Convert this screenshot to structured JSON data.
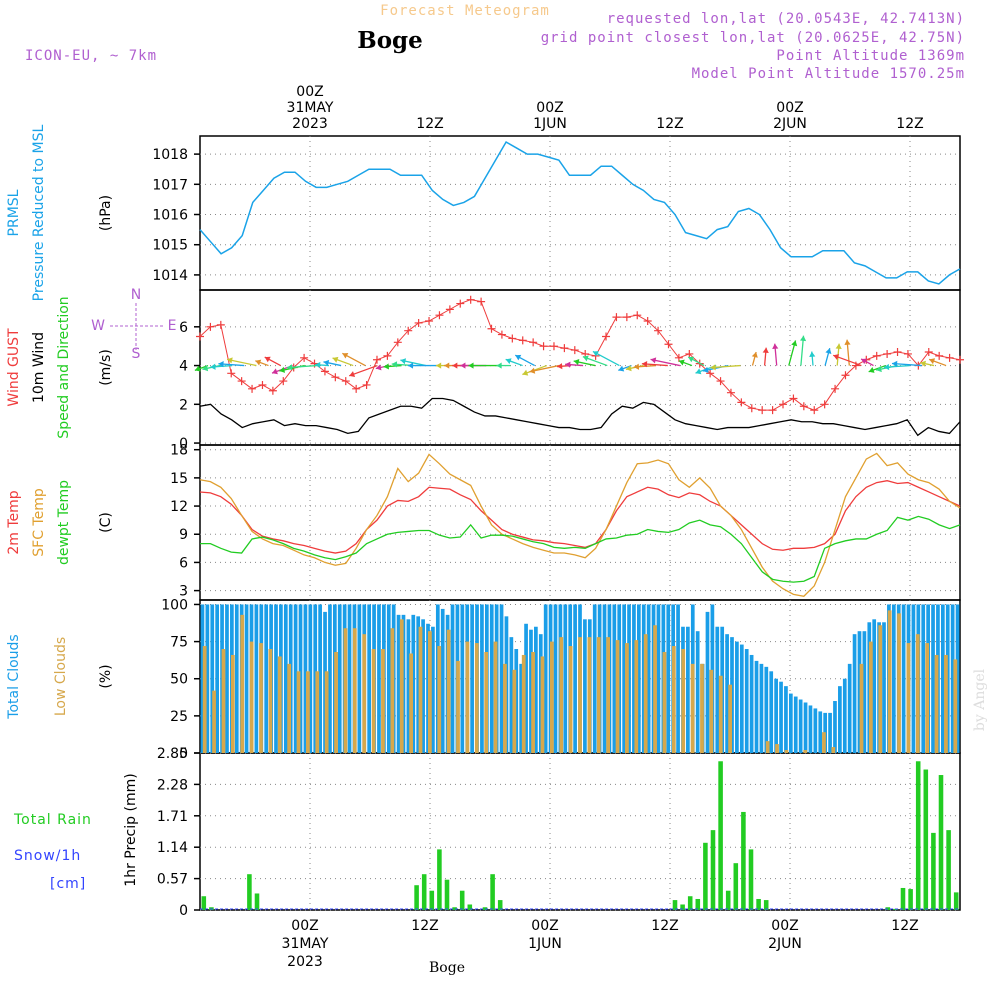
{
  "header": {
    "title": "Forecast Meteogram",
    "place": "Boge",
    "model": "ICON-EU, ~ 7km",
    "requested": "requested lon,lat (20.0543E, 42.7413N)",
    "grid_point": "grid point closest lon,lat (20.0625E, 42.75N)",
    "point_alt": "Point Altitude 1369m",
    "model_alt": "Model Point Altitude 1570.25m",
    "footer": "Boge",
    "credit": "by Angel"
  },
  "time_axis": {
    "labels": [
      {
        "x": 12,
        "lines": [
          "00Z",
          "31MAY",
          "2023"
        ]
      },
      {
        "x": 24,
        "lines": [
          "12Z"
        ]
      },
      {
        "x": 36,
        "lines": [
          "00Z",
          "1JUN"
        ]
      },
      {
        "x": 48,
        "lines": [
          "12Z"
        ]
      },
      {
        "x": 60,
        "lines": [
          "00Z",
          "2JUN"
        ]
      },
      {
        "x": 72,
        "lines": [
          "12Z"
        ]
      }
    ],
    "start_hour": 1,
    "end_hour": 77
  },
  "colors": {
    "pressure": "#1aa3e8",
    "gust": "#ef3c3c",
    "wind": "#000000",
    "temp2m": "#ef3c3c",
    "sfc": "#e0a030",
    "dew": "#22cc22",
    "total_clouds": "#1a9ee8",
    "low_clouds": "#d6a84c",
    "rain": "#22cc22",
    "snow": "#3344ff",
    "label_purple": "#b060d0",
    "title_orange": "#f6c98c"
  },
  "chart_data": [
    {
      "type": "line",
      "ylabels": [
        "PRMSL",
        "Pressure Reduced to MSL",
        "(hPa)"
      ],
      "ylim": [
        1013.5,
        1018.6
      ],
      "yticks": [
        1014,
        1015,
        1016,
        1017,
        1018
      ],
      "series": [
        {
          "values": [
            1015.5,
            1015.1,
            1014.7,
            1014.9,
            1015.3,
            1016.4,
            1016.8,
            1017.2,
            1017.4,
            1017.4,
            1017.1,
            1016.9,
            1016.9,
            1017.0,
            1017.1,
            1017.3,
            1017.5,
            1017.5,
            1017.5,
            1017.3,
            1017.3,
            1017.3,
            1016.8,
            1016.5,
            1016.3,
            1016.4,
            1016.6,
            1017.2,
            1017.8,
            1018.4,
            1018.2,
            1018.0,
            1018.0,
            1017.9,
            1017.8,
            1017.3,
            1017.3,
            1017.3,
            1017.6,
            1017.6,
            1017.3,
            1017.0,
            1016.8,
            1016.5,
            1016.4,
            1016.0,
            1015.4,
            1015.3,
            1015.2,
            1015.5,
            1015.6,
            1016.1,
            1016.2,
            1016.0,
            1015.5,
            1014.9,
            1014.6,
            1014.6,
            1014.6,
            1014.8,
            1014.8,
            1014.8,
            1014.4,
            1014.3,
            1014.1,
            1013.9,
            1013.9,
            1014.1,
            1014.1,
            1013.8,
            1013.7,
            1014.0,
            1014.2
          ]
        }
      ]
    },
    {
      "type": "line",
      "ylabels": [
        "Wind GUST",
        "10m Wind",
        "Speed and Direction",
        "(m/s)"
      ],
      "ylim": [
        -0.1,
        7.9
      ],
      "yticks": [
        0,
        2,
        4,
        6
      ],
      "compass": [
        "N",
        "W",
        "E",
        "S"
      ],
      "series": [
        {
          "name": "Wind GUST",
          "values": [
            5.5,
            6.0,
            6.1,
            3.6,
            3.2,
            2.8,
            3.0,
            2.7,
            3.2,
            3.9,
            4.4,
            4.1,
            3.7,
            3.4,
            3.2,
            2.8,
            3.0,
            4.3,
            4.5,
            5.2,
            5.8,
            6.2,
            6.3,
            6.6,
            6.9,
            7.2,
            7.4,
            7.3,
            5.9,
            5.6,
            5.4,
            5.3,
            5.2,
            5.0,
            5.0,
            4.9,
            4.8,
            4.6,
            4.5,
            5.5,
            6.5,
            6.5,
            6.6,
            6.3,
            5.8,
            5.1,
            4.4,
            4.6,
            4.1,
            3.6,
            3.2,
            2.6,
            2.1,
            1.8,
            1.7,
            1.7,
            2.0,
            2.3,
            1.9,
            1.7,
            2.0,
            2.8,
            3.5,
            4.0,
            4.3,
            4.5,
            4.6,
            4.7,
            4.6,
            4.0,
            4.7,
            4.5,
            4.4,
            4.3
          ]
        },
        {
          "name": "10m Wind",
          "values": [
            1.9,
            2.0,
            1.5,
            1.2,
            0.8,
            1.0,
            1.1,
            1.2,
            0.9,
            1.0,
            0.9,
            0.9,
            0.8,
            0.7,
            0.5,
            0.6,
            1.3,
            1.5,
            1.7,
            1.9,
            1.9,
            1.8,
            2.3,
            2.3,
            2.2,
            1.9,
            1.6,
            1.4,
            1.4,
            1.3,
            1.2,
            1.1,
            1.0,
            0.9,
            0.8,
            0.8,
            0.7,
            0.7,
            0.8,
            1.5,
            1.9,
            1.8,
            2.1,
            2.0,
            1.6,
            1.2,
            1.0,
            0.9,
            0.8,
            0.7,
            0.8,
            0.8,
            0.8,
            0.9,
            1.0,
            1.1,
            1.2,
            1.1,
            1.1,
            1.0,
            1.0,
            0.9,
            0.8,
            0.7,
            0.8,
            0.9,
            1.0,
            1.2,
            0.4,
            0.8,
            0.6,
            0.5,
            1.1
          ]
        }
      ]
    },
    {
      "type": "line",
      "ylabels": [
        "2m Temp",
        "SFC Temp",
        "dewpt Temp",
        "(C)"
      ],
      "ylim": [
        2,
        18.5
      ],
      "yticks": [
        3,
        6,
        9,
        12,
        15,
        18
      ],
      "series": [
        {
          "name": "2m Temp",
          "values": [
            13.5,
            13.4,
            13.0,
            12.2,
            11.0,
            9.5,
            8.8,
            8.5,
            8.3,
            8.0,
            7.8,
            7.5,
            7.2,
            7.0,
            7.2,
            8.0,
            9.5,
            10.5,
            12.0,
            12.6,
            12.5,
            13.0,
            14.0,
            13.9,
            13.8,
            13.2,
            12.7,
            11.5,
            10.5,
            9.5,
            9.0,
            8.7,
            8.4,
            8.3,
            8.1,
            8.0,
            7.8,
            7.6,
            8.0,
            9.5,
            11.5,
            13.0,
            13.5,
            14.0,
            13.8,
            13.2,
            12.9,
            13.4,
            13.2,
            12.5,
            12.0,
            11.0,
            10.0,
            9.0,
            8.0,
            7.4,
            7.3,
            7.5,
            7.5,
            7.6,
            8.0,
            9.0,
            11.5,
            13.0,
            14.0,
            14.5,
            14.7,
            14.4,
            14.5,
            14.0,
            13.5,
            13.0,
            12.5,
            12.0
          ]
        },
        {
          "name": "SFC Temp",
          "values": [
            14.8,
            14.6,
            14.0,
            12.8,
            11.0,
            9.3,
            8.5,
            8.0,
            7.8,
            7.3,
            6.8,
            6.5,
            6.0,
            5.7,
            5.9,
            7.5,
            9.5,
            11.0,
            13.0,
            16.0,
            14.6,
            15.5,
            17.5,
            16.5,
            15.4,
            14.8,
            14.2,
            12.0,
            10.0,
            9.0,
            8.5,
            8.0,
            7.6,
            7.3,
            7.0,
            7.0,
            6.8,
            6.5,
            7.5,
            9.5,
            12.0,
            14.5,
            16.5,
            16.6,
            16.9,
            16.5,
            14.8,
            14.0,
            15.0,
            13.9,
            12.0,
            11.0,
            9.5,
            7.5,
            5.5,
            4.0,
            3.2,
            2.6,
            2.4,
            3.5,
            6.0,
            9.5,
            13.0,
            15.0,
            17.0,
            17.6,
            16.3,
            16.6,
            15.4,
            14.8,
            14.5,
            13.8,
            12.5,
            11.8
          ]
        },
        {
          "name": "dewpt Temp",
          "values": [
            8.0,
            8.0,
            7.5,
            7.1,
            7.0,
            8.5,
            8.7,
            8.4,
            8.0,
            7.5,
            7.2,
            6.8,
            6.5,
            6.3,
            6.6,
            7.0,
            8.0,
            8.5,
            9.0,
            9.2,
            9.3,
            9.4,
            9.4,
            8.9,
            8.6,
            8.7,
            10.0,
            8.6,
            8.9,
            8.9,
            8.8,
            8.5,
            8.2,
            8.0,
            7.6,
            7.5,
            7.6,
            7.5,
            8.0,
            8.5,
            8.6,
            8.9,
            9.0,
            9.5,
            9.3,
            9.2,
            9.5,
            10.2,
            10.5,
            10.0,
            9.8,
            9.0,
            8.0,
            6.5,
            5.0,
            4.2,
            4.0,
            3.9,
            4.0,
            4.5,
            7.5,
            8.0,
            8.3,
            8.5,
            8.5,
            9.0,
            9.4,
            10.8,
            10.5,
            10.9,
            10.6,
            10.0,
            9.6,
            10.0
          ]
        }
      ]
    },
    {
      "type": "bar",
      "ylabels": [
        "Total Clouds",
        "Low Clouds",
        "(%)"
      ],
      "ylim": [
        0,
        103
      ],
      "yticks": [
        0,
        25,
        50,
        75,
        100
      ],
      "series": [
        {
          "name": "Total Clouds",
          "values": [
            100,
            100,
            100,
            100,
            100,
            100,
            100,
            100,
            100,
            100,
            100,
            100,
            100,
            100,
            100,
            100,
            100,
            100,
            100,
            100,
            100,
            100,
            100,
            100,
            100,
            95,
            100,
            100,
            100,
            100,
            100,
            100,
            100,
            100,
            100,
            100,
            100,
            100,
            100,
            100,
            93,
            93,
            90,
            93,
            92,
            90,
            87,
            85,
            100,
            97,
            93,
            100,
            100,
            100,
            100,
            100,
            100,
            100,
            100,
            100,
            100,
            100,
            92,
            78,
            70,
            60,
            87,
            83,
            85,
            80,
            100,
            100,
            100,
            100,
            100,
            100,
            100,
            100,
            90,
            90,
            100,
            100,
            100,
            100,
            100,
            100,
            100,
            100,
            100,
            100,
            100,
            100,
            100,
            100,
            100,
            100,
            100,
            100,
            85,
            85,
            100,
            82,
            60,
            95,
            100,
            85,
            85,
            80,
            78,
            75,
            73,
            70,
            66,
            62,
            60,
            58,
            55,
            50,
            48,
            45,
            40,
            38,
            36,
            34,
            32,
            30,
            28,
            27,
            27,
            35,
            45,
            50,
            60,
            80,
            82,
            82,
            88,
            90,
            88,
            88,
            100,
            100,
            100,
            100,
            100,
            100,
            100,
            100,
            100,
            100,
            100,
            100,
            100,
            100,
            100
          ]
        },
        {
          "name": "Low Clouds",
          "values": [
            72,
            42,
            70,
            66,
            93,
            75,
            74,
            70,
            65,
            60,
            55,
            55,
            55,
            55,
            68,
            84,
            84,
            80,
            70,
            70,
            84,
            90,
            67,
            85,
            82,
            72,
            83,
            62,
            75,
            74,
            68,
            75,
            60,
            56,
            66,
            68,
            65,
            75,
            78,
            72,
            78,
            78,
            78,
            78,
            76,
            74,
            76,
            80,
            86,
            68,
            72,
            70,
            60,
            60,
            56,
            52,
            46,
            0,
            0,
            0,
            8,
            6,
            2,
            0,
            2,
            0,
            14,
            4,
            0,
            0,
            60,
            75,
            86,
            96,
            94,
            74,
            80,
            74,
            66,
            66,
            63
          ]
        }
      ]
    },
    {
      "type": "bar",
      "ylabels": [
        "Total Rain",
        "Snow/1h",
        "[cm]",
        "1hr Precip (mm)"
      ],
      "ylim": [
        0,
        2.85
      ],
      "yticks": [
        0,
        0.57,
        1.14,
        1.71,
        2.28,
        2.85
      ],
      "series": [
        {
          "name": "Total Rain",
          "values": [
            0.25,
            0.05,
            0,
            0,
            0,
            0,
            0.65,
            0.3,
            0,
            0,
            0,
            0,
            0,
            0,
            0,
            0,
            0,
            0,
            0,
            0,
            0,
            0,
            0,
            0,
            0,
            0,
            0,
            0,
            0.45,
            0.65,
            0.35,
            1.1,
            0.55,
            0.05,
            0.35,
            0.1,
            0,
            0.05,
            0.65,
            0.18,
            0,
            0,
            0,
            0,
            0,
            0,
            0,
            0,
            0,
            0,
            0,
            0,
            0,
            0,
            0,
            0,
            0,
            0,
            0,
            0,
            0,
            0,
            0.18,
            0.1,
            0.25,
            0.2,
            1.22,
            1.45,
            2.7,
            0.35,
            0.85,
            1.78,
            1.1,
            0.2,
            0.18,
            0,
            0,
            0,
            0,
            0,
            0,
            0,
            0,
            0,
            0,
            0,
            0,
            0,
            0,
            0,
            0.05,
            0.02,
            0.4,
            0.38,
            2.7,
            2.55,
            1.4,
            2.45,
            1.45,
            0.32
          ]
        }
      ]
    }
  ]
}
